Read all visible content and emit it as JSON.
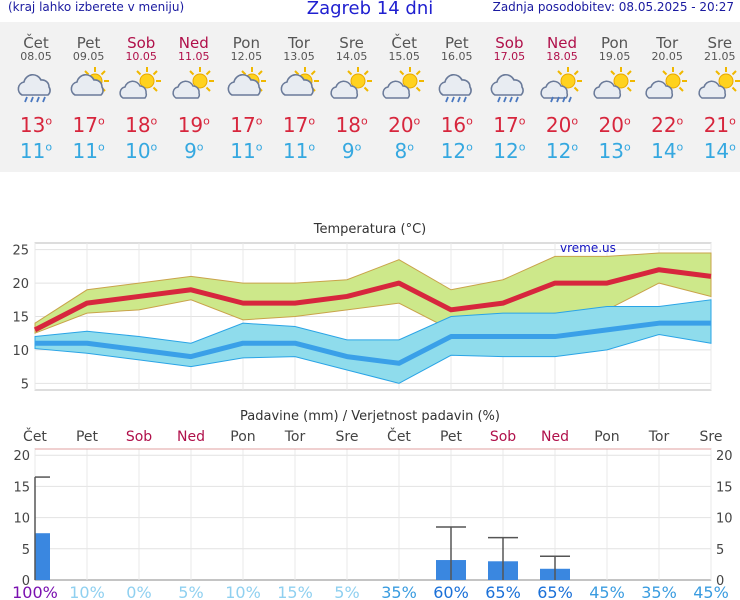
{
  "header": {
    "menu_hint": "(kraj lahko izberete v meniju)",
    "title": "Zagreb 14 dni",
    "updated": "Zadnja posodobitev: 08.05.2025 - 20:27"
  },
  "days": [
    {
      "name": "Čet",
      "date": "08.05",
      "weekend": false,
      "icon": "rain-cloud-icon",
      "tmax": "13",
      "tmin": "11"
    },
    {
      "name": "Pet",
      "date": "09.05",
      "weekend": false,
      "icon": "partly-cloudy-icon",
      "tmax": "17",
      "tmin": "11"
    },
    {
      "name": "Sob",
      "date": "10.05",
      "weekend": true,
      "icon": "sun-cloud-icon",
      "tmax": "18",
      "tmin": "10"
    },
    {
      "name": "Ned",
      "date": "11.05",
      "weekend": true,
      "icon": "sun-cloud-icon",
      "tmax": "19",
      "tmin": "9"
    },
    {
      "name": "Pon",
      "date": "12.05",
      "weekend": false,
      "icon": "partly-cloudy-icon",
      "tmax": "17",
      "tmin": "11"
    },
    {
      "name": "Tor",
      "date": "13.05",
      "weekend": false,
      "icon": "partly-cloudy-icon",
      "tmax": "17",
      "tmin": "11"
    },
    {
      "name": "Sre",
      "date": "14.05",
      "weekend": false,
      "icon": "sun-cloud-icon",
      "tmax": "18",
      "tmin": "9"
    },
    {
      "name": "Čet",
      "date": "15.05",
      "weekend": false,
      "icon": "sun-cloud-icon",
      "tmax": "20",
      "tmin": "8"
    },
    {
      "name": "Pet",
      "date": "16.05",
      "weekend": false,
      "icon": "rain-cloud-icon",
      "tmax": "16",
      "tmin": "12"
    },
    {
      "name": "Sob",
      "date": "17.05",
      "weekend": true,
      "icon": "rain-cloud-icon",
      "tmax": "17",
      "tmin": "12"
    },
    {
      "name": "Ned",
      "date": "18.05",
      "weekend": true,
      "icon": "sun-rain-icon",
      "tmax": "20",
      "tmin": "12"
    },
    {
      "name": "Pon",
      "date": "19.05",
      "weekend": false,
      "icon": "sun-cloud-icon",
      "tmax": "20",
      "tmin": "13"
    },
    {
      "name": "Tor",
      "date": "20.05",
      "weekend": false,
      "icon": "sun-cloud-icon",
      "tmax": "22",
      "tmin": "14"
    },
    {
      "name": "Sre",
      "date": "21.05",
      "weekend": false,
      "icon": "sun-cloud-icon",
      "tmax": "21",
      "tmin": "14"
    }
  ],
  "degree_symbol": "o",
  "colors": {
    "max": "#d7263d",
    "min": "#35a8e0",
    "weekend": "#b0104a",
    "bar": "#3a87e0",
    "band_max": "#cde88a",
    "band_min": "#8fdcec",
    "overlap": "#9bd27a"
  },
  "chart_data": [
    {
      "type": "line",
      "title": "Temperatura (°C)",
      "watermark": "vreme.us",
      "categories": [
        "Čet",
        "Pet",
        "Sob",
        "Ned",
        "Pon",
        "Tor",
        "Sre",
        "Čet",
        "Pet",
        "Sob",
        "Ned",
        "Pon",
        "Tor",
        "Sre"
      ],
      "ylim": [
        4,
        26
      ],
      "yticks": [
        5,
        10,
        15,
        20,
        25
      ],
      "series": [
        {
          "key": "max",
          "values": [
            13,
            17,
            18,
            19,
            17,
            17,
            18,
            20,
            16,
            17,
            20,
            20,
            22,
            21
          ]
        },
        {
          "key": "min",
          "values": [
            11,
            11,
            10,
            9,
            11,
            11,
            9,
            8,
            12,
            12,
            12,
            13,
            14,
            14
          ]
        }
      ],
      "max_band": {
        "upper": [
          14,
          19,
          20,
          21,
          20,
          20,
          20.5,
          23.5,
          19,
          20.5,
          24,
          24,
          24.5,
          24.5
        ],
        "lower": [
          12.5,
          15.5,
          16,
          17.5,
          14.5,
          15,
          16,
          17,
          13,
          14,
          15.5,
          16,
          20,
          18
        ]
      },
      "min_band": {
        "upper": [
          12,
          12.8,
          12,
          11,
          14,
          13.5,
          11.5,
          11.5,
          15,
          15.5,
          15.5,
          16.5,
          16.5,
          17.5
        ],
        "lower": [
          10.2,
          9.5,
          8.5,
          7.5,
          8.8,
          9,
          7,
          5,
          9.2,
          9,
          9,
          10,
          12.3,
          11
        ]
      },
      "grid": true
    },
    {
      "type": "bar",
      "title": "Padavine (mm) / Verjetnost padavin (%)",
      "categories": [
        "Čet",
        "Pet",
        "Sob",
        "Ned",
        "Pon",
        "Tor",
        "Sre",
        "Čet",
        "Pet",
        "Sob",
        "Ned",
        "Pon",
        "Tor",
        "Sre"
      ],
      "ylim": [
        0,
        21
      ],
      "yticks": [
        0,
        5,
        10,
        15,
        20
      ],
      "values": [
        7.5,
        0,
        0,
        0,
        0,
        0,
        0,
        0,
        3.2,
        3,
        1.8,
        0,
        0,
        0
      ],
      "error_high": [
        16.5,
        0,
        0,
        0,
        0,
        0,
        0,
        0,
        8.5,
        6.8,
        3.8,
        0,
        0,
        0
      ],
      "probability": [
        "100%",
        "10%",
        "0%",
        "5%",
        "10%",
        "15%",
        "5%",
        "35%",
        "60%",
        "65%",
        "65%",
        "45%",
        "35%",
        "45%"
      ],
      "grid": true
    }
  ]
}
